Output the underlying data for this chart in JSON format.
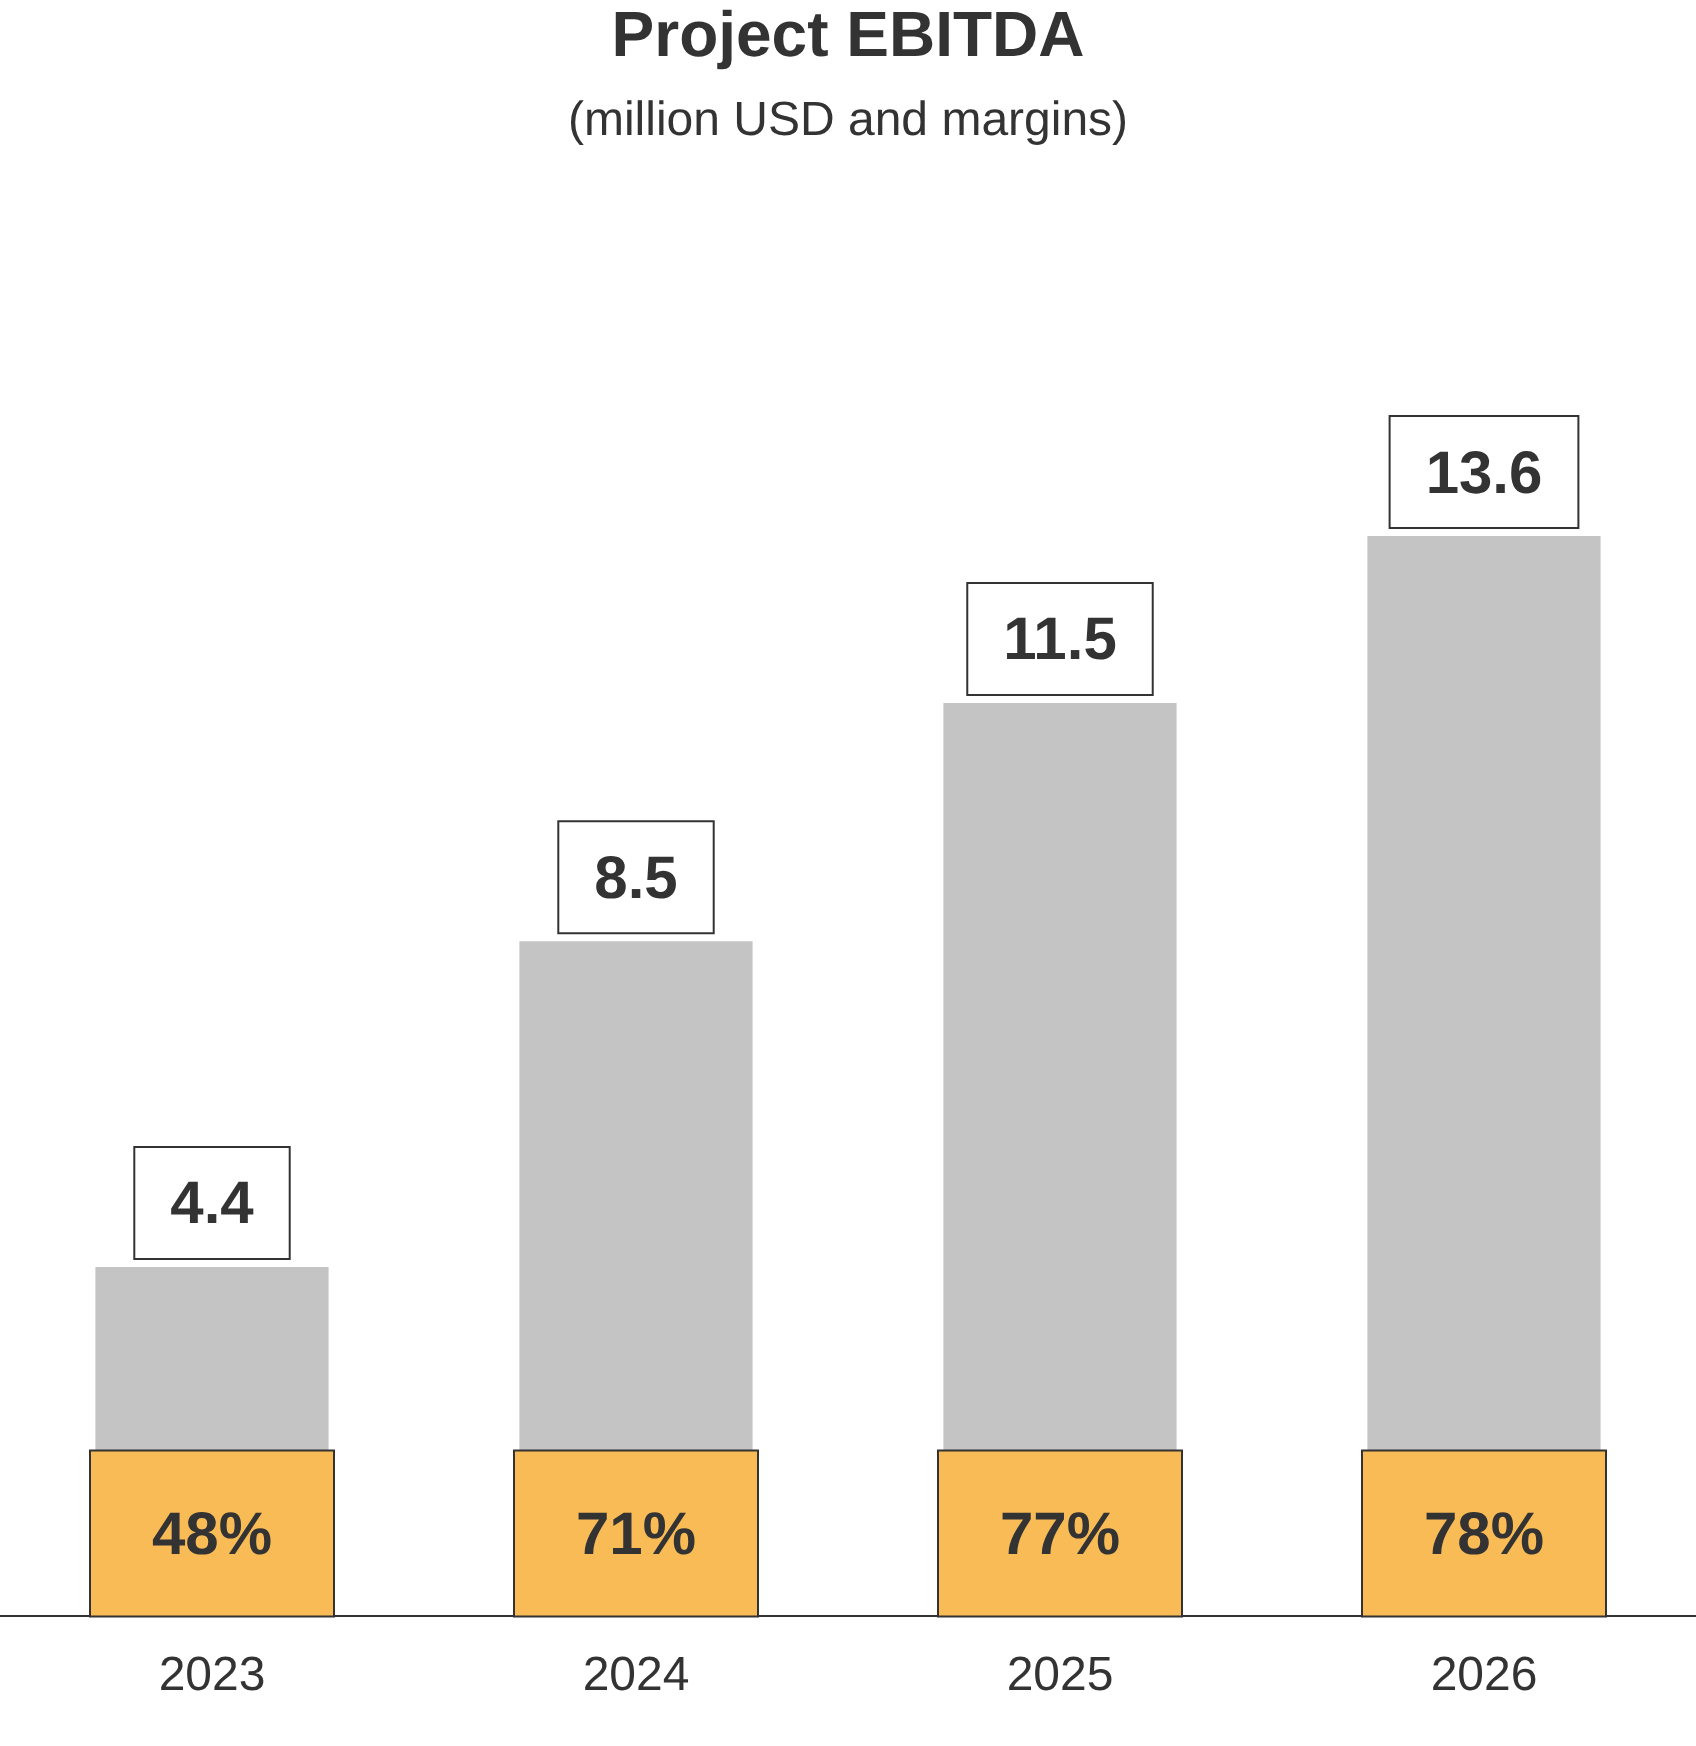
{
  "chart_data": {
    "type": "bar",
    "title": "Project EBITDA",
    "subtitle": "(million USD and margins)",
    "categories": [
      "2023",
      "2024",
      "2025",
      "2026"
    ],
    "values": [
      4.4,
      8.5,
      11.5,
      13.6
    ],
    "color": "#c4c4c4",
    "data_labels": true,
    "grid": false,
    "legend": false,
    "annotations": [
      "48%",
      "71%",
      "77%",
      "78%"
    ]
  }
}
